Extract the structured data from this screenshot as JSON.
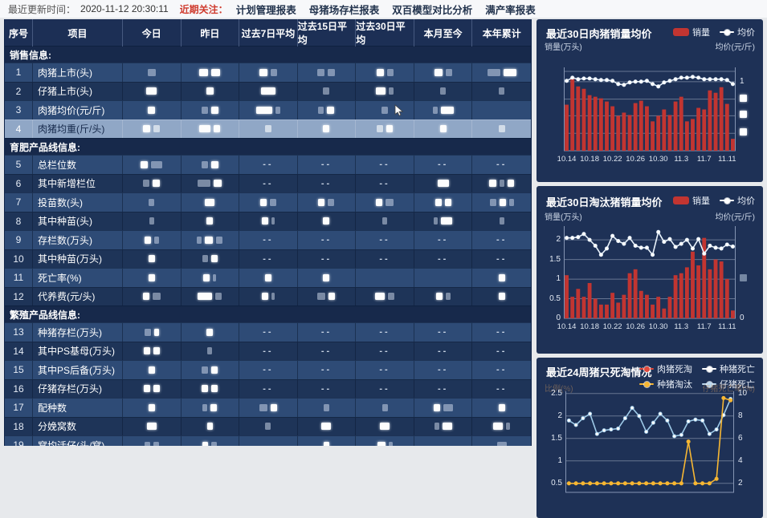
{
  "topbar": {
    "updated_label": "最近更新时间：",
    "updated_time": "2020-11-12 20:30:11",
    "focus_label": "近期关注：",
    "tabs": [
      "计划管理报表",
      "母猪场存栏报表",
      "双百模型对比分析",
      "满产率报表"
    ]
  },
  "table": {
    "headers": [
      "序号",
      "项目",
      "今日",
      "昨日",
      "过去7日平均",
      "过去15日平均",
      "过去30日平均",
      "本月至今",
      "本年累计"
    ],
    "redaction_note": "numeric cell values are redacted in the screenshot; w/g tokens = white/grey redaction blocks",
    "rows": [
      {
        "type": "section",
        "label": "销售信息:"
      },
      {
        "no": "1",
        "item": "肉猪上市(头)",
        "cells": [
          "g10",
          "w11 w11",
          "w10 g8",
          "g9 g9",
          "w9 g8",
          "w10 g8",
          "g16 w16"
        ]
      },
      {
        "no": "2",
        "item": "仔猪上市(头)",
        "cells": [
          "w13",
          "w9",
          "w18",
          "g8",
          "w12 g6",
          "g7",
          "g7"
        ]
      },
      {
        "no": "3",
        "item": "肉猪均价(元/斤)",
        "cells": [
          "w9",
          "g8 w9",
          "w20 g6",
          "g7 w9",
          "g8",
          "g6 w16",
          ""
        ],
        "cursor_col": 4
      },
      {
        "no": "4",
        "item": "肉猪均重(斤/头)",
        "highlight": true,
        "cells": [
          "w9 g8",
          "w14 w8",
          "g8",
          "w8",
          "g8 w8",
          "w8",
          "g8"
        ]
      },
      {
        "type": "section",
        "label": "育肥产品线信息:"
      },
      {
        "no": "5",
        "item": "总栏位数",
        "cells": [
          "w9 g14",
          "g8 w9",
          "--",
          "--",
          "--",
          "--",
          "--"
        ]
      },
      {
        "no": "6",
        "item": "其中新增栏位",
        "cells": [
          "g8 w9",
          "g16 w10",
          "--",
          "--",
          "--",
          "w14",
          "w9 g6 w8"
        ]
      },
      {
        "no": "7",
        "item": "投苗数(头)",
        "cells": [
          "g7",
          "w12",
          "w8 g8",
          "w8 g8",
          "w8 g10",
          "w8 w8",
          "g8 w8 g6"
        ]
      },
      {
        "no": "8",
        "item": "其中种苗(头)",
        "cells": [
          "g6",
          "w8",
          "w8 g4",
          "w8",
          "g6",
          "g5 w14",
          "g6"
        ]
      },
      {
        "no": "9",
        "item": "存栏数(万头)",
        "cells": [
          "w8 g6",
          "g6 w10 g8",
          "--",
          "--",
          "--",
          "--",
          "--"
        ]
      },
      {
        "no": "10",
        "item": "其中种苗(万头)",
        "cells": [
          "w8",
          "g7 w8",
          "--",
          "--",
          "--",
          "--",
          "--"
        ]
      },
      {
        "no": "11",
        "item": "死亡率(%)",
        "cells": [
          "w8",
          "w8 g4",
          "w8",
          "w8",
          "",
          "",
          "w8"
        ]
      },
      {
        "no": "12",
        "item": "代养费(元/头)",
        "cells": [
          "w8 g10",
          "w18 g8",
          "w8 g4",
          "g10 w8",
          "w12 g8",
          "w8 g6",
          "w8"
        ]
      },
      {
        "type": "section",
        "label": "繁殖产品线信息:"
      },
      {
        "no": "13",
        "item": "种猪存栏(万头)",
        "cells": [
          "g8 w6",
          "w8",
          "--",
          "--",
          "--",
          "--",
          "--"
        ]
      },
      {
        "no": "14",
        "item": "其中PS基母(万头)",
        "cells": [
          "w8 w8",
          "g6",
          "--",
          "--",
          "--",
          "--",
          "--"
        ]
      },
      {
        "no": "15",
        "item": "其中PS后备(万头)",
        "cells": [
          "w8",
          "g8 w8",
          "--",
          "--",
          "--",
          "--",
          "--"
        ]
      },
      {
        "no": "16",
        "item": "仔猪存栏(万头)",
        "cells": [
          "w8 w8",
          "w8 w8",
          "--",
          "--",
          "--",
          "--",
          "--"
        ]
      },
      {
        "no": "17",
        "item": "配种数",
        "cells": [
          "w8",
          "g6 w8",
          "g10 w8",
          "g7",
          "g7",
          "w8 g12",
          "w8"
        ]
      },
      {
        "no": "18",
        "item": "分娩窝数",
        "cells": [
          "w12",
          "w7",
          "g7",
          "w12",
          "w12",
          "g6 w12",
          "w12 g5"
        ]
      },
      {
        "no": "19",
        "item": "窝均活仔(头/窝)",
        "cells": [
          "g7 g7",
          "w7 g7",
          "",
          "w7",
          "w10 g5",
          "",
          "g12"
        ]
      }
    ]
  },
  "chart_data": [
    {
      "type": "bar",
      "title": "最近30日肉猪销量均价",
      "legend": [
        {
          "label": "销量",
          "type": "bar",
          "color": "#c23531"
        },
        {
          "label": "均价",
          "type": "line",
          "color": "#ffffff"
        }
      ],
      "y_left_label": "销量(万头)",
      "y_right_label": "均价(元/斤)",
      "ylim": [
        0,
        105
      ],
      "x": [
        "10.14",
        "10.15",
        "10.16",
        "10.17",
        "10.18",
        "10.19",
        "10.20",
        "10.21",
        "10.22",
        "10.23",
        "10.24",
        "10.25",
        "10.26",
        "10.27",
        "10.28",
        "10.29",
        "10.30",
        "10.31",
        "11.1",
        "11.2",
        "11.3",
        "11.4",
        "11.5",
        "11.6",
        "11.7",
        "11.8",
        "11.9",
        "11.10",
        "11.11",
        "11.12"
      ],
      "x_tick_labels": [
        "10.14",
        "10.18",
        "10.22",
        "10.26",
        "10.30",
        "11.3",
        "11.7",
        "11.11"
      ],
      "x_tick_idx": [
        0,
        4,
        8,
        12,
        16,
        20,
        24,
        28
      ],
      "grid": [
        {
          "v": 100
        },
        {
          "v": 87,
          "right": "1"
        },
        {
          "v": 65,
          "right": "##w"
        },
        {
          "v": 44,
          "right": "##w"
        },
        {
          "v": 22,
          "right": "##w"
        }
      ],
      "bars": {
        "name": "销量",
        "color": "#c23531",
        "values": [
          58,
          93,
          81,
          78,
          70,
          68,
          66,
          62,
          56,
          44,
          48,
          45,
          60,
          63,
          56,
          37,
          44,
          52,
          45,
          62,
          68,
          37,
          40,
          54,
          52,
          76,
          73,
          80,
          59,
          15
        ]
      },
      "series": [
        {
          "name": "均价",
          "color": "#e8f2fb",
          "dot_fill": "#ffffff",
          "values": [
            88,
            92,
            90,
            91,
            91,
            90,
            89,
            89,
            88,
            84,
            83,
            86,
            87,
            87,
            88,
            84,
            81,
            86,
            88,
            90,
            92,
            92,
            93,
            92,
            90,
            90,
            90,
            90,
            89,
            84
          ]
        }
      ]
    },
    {
      "type": "bar",
      "title": "最近30日淘汰猪销量均价",
      "legend": [
        {
          "label": "销量",
          "type": "bar",
          "color": "#c23531"
        },
        {
          "label": "均价",
          "type": "line",
          "color": "#ffffff"
        }
      ],
      "y_left_label": "销量(万头)",
      "y_right_label": "均价(元/斤)",
      "ylim": [
        0,
        2.35
      ],
      "x": [
        "10.14",
        "10.15",
        "10.16",
        "10.17",
        "10.18",
        "10.19",
        "10.20",
        "10.21",
        "10.22",
        "10.23",
        "10.24",
        "10.25",
        "10.26",
        "10.27",
        "10.28",
        "10.29",
        "10.30",
        "10.31",
        "11.1",
        "11.2",
        "11.3",
        "11.4",
        "11.5",
        "11.6",
        "11.7",
        "11.8",
        "11.9",
        "11.10",
        "11.11",
        "11.12"
      ],
      "x_tick_labels": [
        "10.14",
        "10.18",
        "10.22",
        "10.26",
        "10.30",
        "11.3",
        "11.7",
        "11.11"
      ],
      "x_tick_idx": [
        0,
        4,
        8,
        12,
        16,
        20,
        24,
        28
      ],
      "grid": [
        {
          "v": 2,
          "left": "2"
        },
        {
          "v": 1.5,
          "left": "1.5"
        },
        {
          "v": 1,
          "left": "1",
          "right": "##g"
        },
        {
          "v": 0.5,
          "left": "0.5"
        },
        {
          "v": 0,
          "left": "0",
          "right": "0",
          "line": false
        }
      ],
      "bars": {
        "name": "销量",
        "color": "#c23531",
        "values": [
          1.1,
          0.55,
          0.75,
          0.55,
          0.9,
          0.5,
          0.35,
          0.35,
          0.65,
          0.4,
          0.6,
          1.15,
          1.25,
          0.7,
          0.6,
          0.35,
          0.55,
          0.25,
          0.55,
          1.1,
          1.15,
          1.3,
          1.7,
          1.35,
          2.05,
          1.25,
          1.5,
          1.45,
          1.0,
          0.2
        ]
      },
      "series": [
        {
          "name": "均价",
          "color": "#e8f2fb",
          "dot_fill": "#ffffff",
          "values": [
            2.05,
            2.05,
            2.07,
            2.15,
            2.0,
            1.85,
            1.62,
            1.78,
            2.1,
            1.97,
            1.9,
            2.05,
            1.85,
            1.8,
            1.8,
            1.62,
            2.2,
            1.95,
            2.02,
            1.82,
            1.9,
            2.0,
            1.78,
            2.02,
            1.65,
            1.85,
            1.8,
            1.78,
            1.88,
            1.83
          ]
        }
      ]
    },
    {
      "type": "line",
      "title": "最近24周猪只死淘情况",
      "legend": [
        {
          "label": "肉猪死淘",
          "type": "line",
          "color": "#e0493c"
        },
        {
          "label": "种猪死亡",
          "type": "line",
          "color": "#ffffff"
        },
        {
          "label": "种猪淘汰",
          "type": "line",
          "color": "#f7b733"
        },
        {
          "label": "仔猪死亡",
          "type": "line",
          "color": "#bcd9f0"
        }
      ],
      "y_left_label": "比例(%)",
      "y_right_label": "仔猪死亡率(%)",
      "axis_labels_faded": true,
      "ylim": [
        0.3,
        2.55
      ],
      "x_tick_labels": [],
      "x_tick_idx": [],
      "grid": [
        {
          "v": 2.5,
          "left": "2.5",
          "right": "10"
        },
        {
          "v": 2,
          "left": "2",
          "right": "8"
        },
        {
          "v": 1.5,
          "left": "1.5",
          "right": "6"
        },
        {
          "v": 1,
          "left": "1",
          "right": "4"
        },
        {
          "v": 0.5,
          "left": "0.5",
          "right": "2"
        }
      ],
      "series": [
        {
          "name": "仔猪死亡",
          "color": "#9ecae8",
          "dot_fill": "#ffffff",
          "values": [
            1.9,
            1.8,
            1.95,
            2.05,
            1.6,
            1.68,
            1.7,
            1.72,
            1.95,
            2.18,
            2.0,
            1.65,
            1.85,
            2.05,
            1.9,
            1.55,
            1.58,
            1.88,
            1.92,
            1.9,
            1.6,
            1.7,
            2.02,
            2.38
          ]
        },
        {
          "name": "种猪淘汰",
          "color": "#f7b733",
          "dot_fill": "#f7b733",
          "values": [
            0.5,
            0.5,
            0.5,
            0.5,
            0.5,
            0.5,
            0.5,
            0.5,
            0.5,
            0.5,
            0.5,
            0.5,
            0.5,
            0.5,
            0.5,
            0.5,
            0.5,
            1.43,
            0.5,
            0.5,
            0.5,
            0.6,
            2.4,
            2.35
          ]
        },
        {
          "name": "肉猪死淘",
          "color": "#e0493c",
          "dot_fill": "#e0493c",
          "values": []
        },
        {
          "name": "种猪死亡",
          "color": "#ffffff",
          "dot_fill": "#ffffff",
          "values": []
        }
      ]
    }
  ]
}
